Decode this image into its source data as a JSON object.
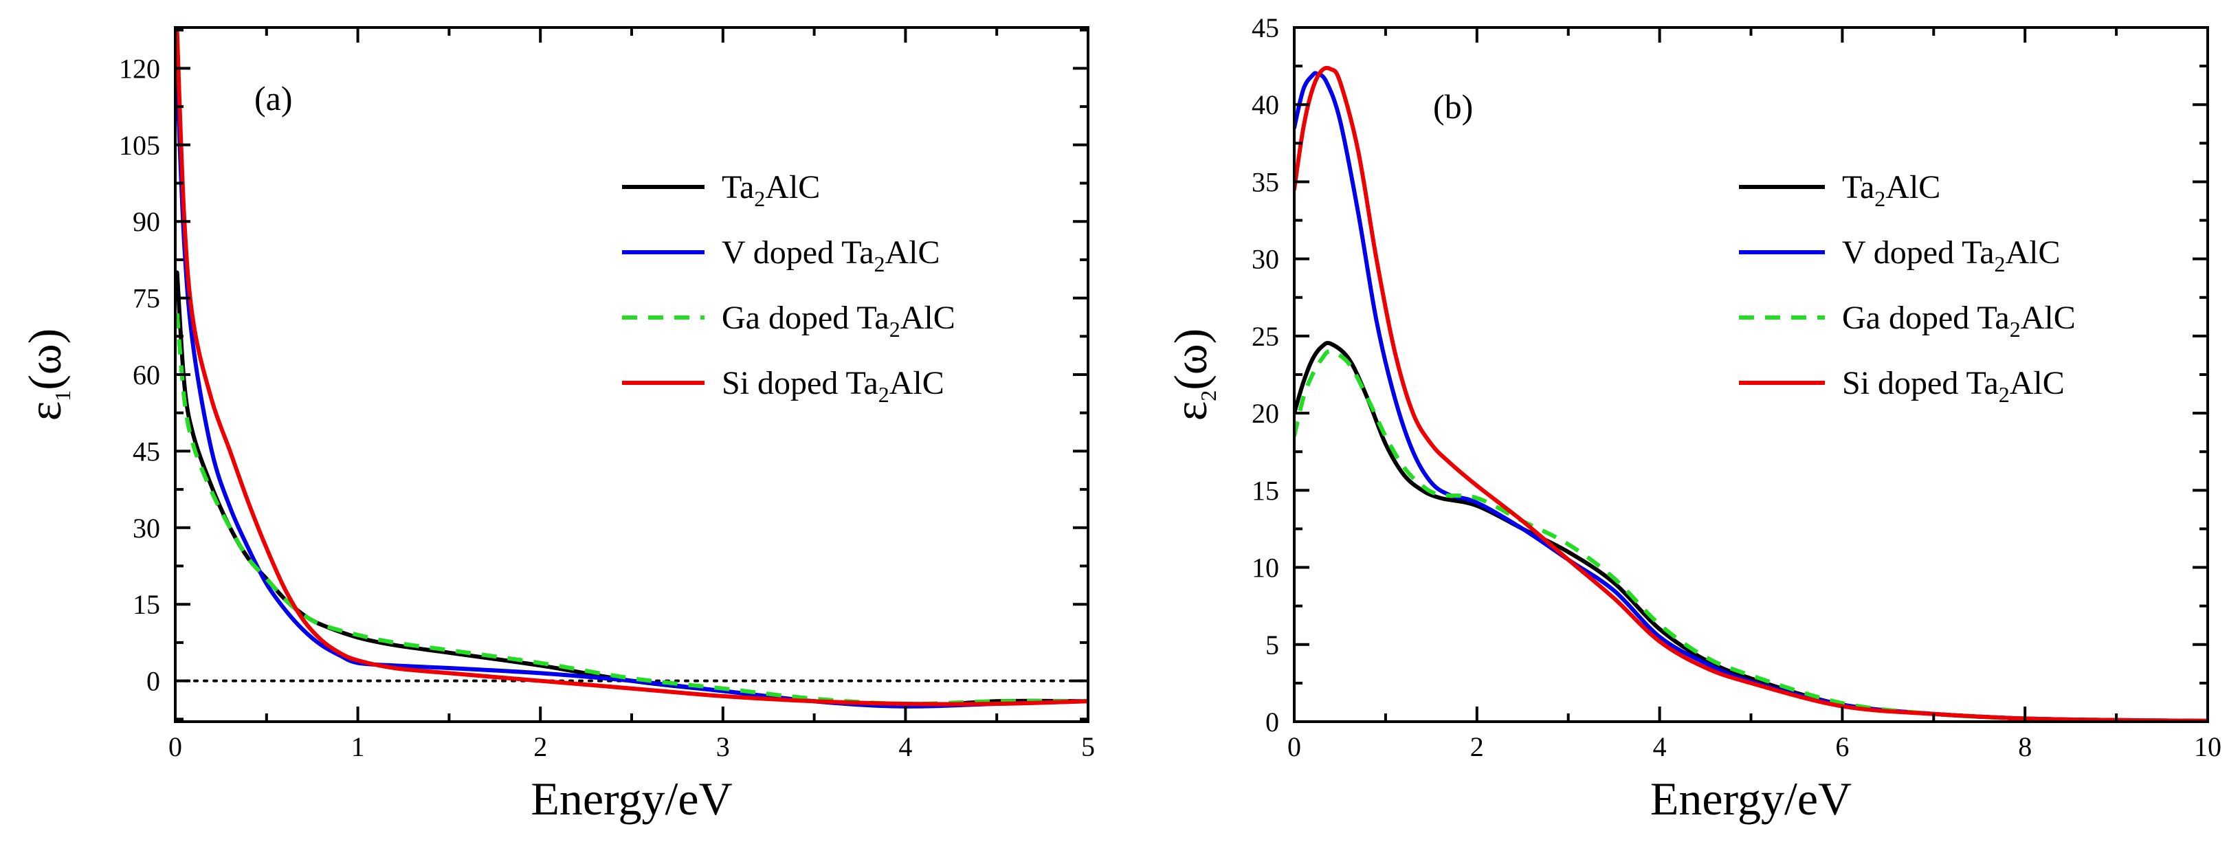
{
  "chart_data": [
    {
      "type": "line",
      "panel_label": "(a)",
      "xlabel": "Energy/eV",
      "ylabel_main": "ε",
      "ylabel_sub": "1",
      "ylabel_tail": "(ω)",
      "xlim": [
        0,
        5
      ],
      "ylim": [
        -8,
        128
      ],
      "xticks": [
        0,
        1,
        2,
        3,
        4,
        5
      ],
      "yticks": [
        0,
        15,
        30,
        45,
        60,
        75,
        90,
        105,
        120
      ],
      "zero_line": true,
      "legend_position": "right-middle",
      "series": [
        {
          "name": "Ta2AlC",
          "label_pre": "Ta",
          "label_sub": "2",
          "label_post": "AlC",
          "color": "#000000",
          "dash": "solid",
          "x": [
            0.01,
            0.05,
            0.1,
            0.2,
            0.3,
            0.4,
            0.5,
            0.6,
            0.7,
            0.8,
            1.0,
            1.2,
            1.5,
            2.0,
            2.5,
            3.0,
            3.5,
            4.0,
            4.5,
            5.0
          ],
          "y": [
            80,
            58,
            48,
            38,
            30,
            24,
            20,
            16,
            13,
            11,
            8.5,
            7,
            5.5,
            3,
            0,
            -2,
            -4,
            -5,
            -4,
            -4
          ]
        },
        {
          "name": "V doped Ta2AlC",
          "label_pre": "V doped Ta",
          "label_sub": "2",
          "label_post": "AlC",
          "color": "#0000ee",
          "dash": "solid",
          "x": [
            0.01,
            0.05,
            0.1,
            0.2,
            0.3,
            0.4,
            0.5,
            0.6,
            0.7,
            0.8,
            0.9,
            1.0,
            1.2,
            1.5,
            2.0,
            2.5,
            3.0,
            3.5,
            4.0,
            4.5,
            5.0
          ],
          "y": [
            118,
            85,
            65,
            45,
            34,
            26,
            19,
            14,
            10,
            7,
            5,
            3.5,
            3,
            2.5,
            1.5,
            0,
            -2,
            -4,
            -5,
            -4.5,
            -4
          ]
        },
        {
          "name": "Ga doped Ta2AlC",
          "label_pre": "Ga doped Ta",
          "label_sub": "2",
          "label_post": "AlC",
          "color": "#22dd22",
          "dash": "dashed",
          "x": [
            0.01,
            0.05,
            0.1,
            0.2,
            0.3,
            0.4,
            0.5,
            0.6,
            0.7,
            0.8,
            1.0,
            1.2,
            1.5,
            2.0,
            2.5,
            3.0,
            3.5,
            4.0,
            4.5,
            5.0
          ],
          "y": [
            72,
            55,
            46,
            37,
            30,
            24,
            20,
            16,
            13,
            11,
            9,
            7.5,
            6,
            3.5,
            0.5,
            -1.5,
            -3.5,
            -4.5,
            -4,
            -4
          ]
        },
        {
          "name": "Si doped Ta2AlC",
          "label_pre": "Si doped Ta",
          "label_sub": "2",
          "label_post": "AlC",
          "color": "#ee0000",
          "dash": "solid",
          "x": [
            0.01,
            0.05,
            0.1,
            0.2,
            0.3,
            0.4,
            0.5,
            0.6,
            0.7,
            0.8,
            0.9,
            1.0,
            1.2,
            1.5,
            2.0,
            2.5,
            3.0,
            3.5,
            4.0,
            4.5,
            5.0
          ],
          "y": [
            127,
            90,
            70,
            55,
            45,
            35,
            26,
            18,
            12,
            8,
            5.5,
            4,
            2.5,
            1.5,
            0,
            -1.5,
            -3,
            -4,
            -4.5,
            -4.5,
            -4
          ]
        }
      ]
    },
    {
      "type": "line",
      "panel_label": "(b)",
      "xlabel": "Energy/eV",
      "ylabel_main": "ε",
      "ylabel_sub": "2",
      "ylabel_tail": "(ω)",
      "xlim": [
        0,
        10
      ],
      "ylim": [
        0,
        45
      ],
      "xticks": [
        0,
        2,
        4,
        6,
        8,
        10
      ],
      "yticks": [
        0,
        5,
        10,
        15,
        20,
        25,
        30,
        35,
        40,
        45
      ],
      "zero_line": false,
      "legend_position": "right-middle",
      "series": [
        {
          "name": "Ta2AlC",
          "label_pre": "Ta",
          "label_sub": "2",
          "label_post": "AlC",
          "color": "#000000",
          "dash": "solid",
          "x": [
            0.0,
            0.1,
            0.2,
            0.3,
            0.4,
            0.6,
            0.8,
            1.0,
            1.2,
            1.4,
            1.6,
            2.0,
            2.5,
            3.0,
            3.5,
            4.0,
            4.5,
            5.0,
            6.0,
            7.0,
            8.0,
            9.0,
            10.0
          ],
          "y": [
            20,
            22,
            23.5,
            24.3,
            24.5,
            23.5,
            21,
            18,
            16,
            15,
            14.5,
            14,
            12.5,
            11,
            9,
            6,
            4,
            2.8,
            1.1,
            0.5,
            0.2,
            0.1,
            0.05
          ]
        },
        {
          "name": "V doped Ta2AlC",
          "label_pre": "V doped Ta",
          "label_sub": "2",
          "label_post": "AlC",
          "color": "#0000ee",
          "dash": "solid",
          "x": [
            0.0,
            0.1,
            0.2,
            0.25,
            0.35,
            0.5,
            0.7,
            0.9,
            1.1,
            1.3,
            1.5,
            1.7,
            2.0,
            2.5,
            3.0,
            3.5,
            4.0,
            4.5,
            5.0,
            6.0,
            7.0,
            8.0,
            9.0,
            10.0
          ],
          "y": [
            38.5,
            41,
            41.9,
            42,
            41.5,
            39,
            33,
            26,
            21,
            17.5,
            15.5,
            14.7,
            14.2,
            12.5,
            10.5,
            8.5,
            5.5,
            3.8,
            2.6,
            1.1,
            0.5,
            0.2,
            0.1,
            0.05
          ]
        },
        {
          "name": "Ga doped Ta2AlC",
          "label_pre": "Ga doped Ta",
          "label_sub": "2",
          "label_post": "AlC",
          "color": "#22dd22",
          "dash": "dashed",
          "x": [
            0.0,
            0.1,
            0.2,
            0.3,
            0.4,
            0.6,
            0.8,
            1.0,
            1.2,
            1.4,
            1.6,
            2.0,
            2.5,
            3.0,
            3.5,
            4.0,
            4.5,
            5.0,
            6.0,
            7.0,
            8.0,
            9.0,
            10.0
          ],
          "y": [
            18.5,
            21,
            22.5,
            23.5,
            24,
            23.2,
            21,
            18.5,
            16.5,
            15.3,
            14.7,
            14.5,
            13,
            11.5,
            9.3,
            6.3,
            4.2,
            3,
            1.2,
            0.5,
            0.2,
            0.1,
            0.05
          ]
        },
        {
          "name": "Si doped Ta2AlC",
          "label_pre": "Si doped Ta",
          "label_sub": "2",
          "label_post": "AlC",
          "color": "#ee0000",
          "dash": "solid",
          "x": [
            0.0,
            0.1,
            0.2,
            0.3,
            0.4,
            0.5,
            0.7,
            0.9,
            1.1,
            1.3,
            1.5,
            1.7,
            2.0,
            2.5,
            3.0,
            3.5,
            4.0,
            4.5,
            5.0,
            6.0,
            7.0,
            8.0,
            9.0,
            10.0
          ],
          "y": [
            34.5,
            38.5,
            41,
            42.2,
            42.3,
            41.5,
            37,
            30,
            24,
            20,
            18,
            16.8,
            15.3,
            13,
            10.5,
            8,
            5.2,
            3.5,
            2.5,
            1,
            0.5,
            0.2,
            0.1,
            0.05
          ]
        }
      ]
    }
  ]
}
